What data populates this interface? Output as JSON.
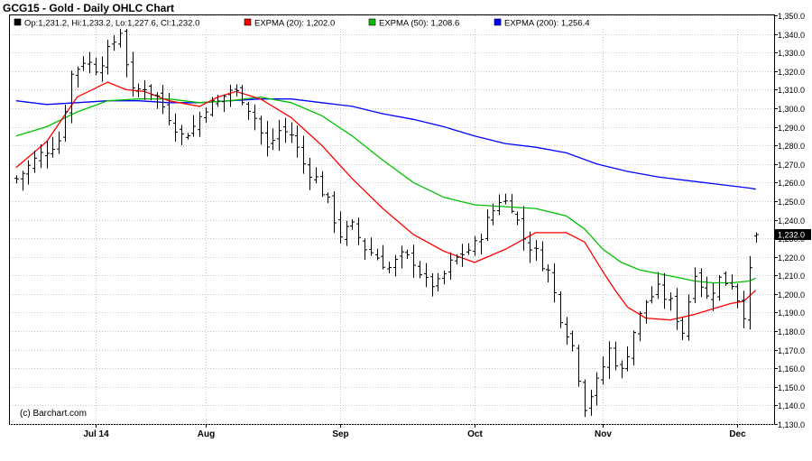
{
  "chart_data": {
    "type": "ohlc",
    "title": "GCG15 - Gold - Daily OHLC Chart",
    "legend": [
      {
        "name": "Op:1,231.2, Hi:1,233.2, Lo:1,227.6, Cl:1,232.0",
        "color": "#000000"
      },
      {
        "name": "EXPMA (20): 1,202.0",
        "color": "#ff0000"
      },
      {
        "name": "EXPMA (50): 1,208.6",
        "color": "#00c000"
      },
      {
        "name": "EXPMA (200): 1,256.4",
        "color": "#0000ff"
      }
    ],
    "legend_position": "top",
    "watermark": "(c) Barchart.com",
    "last_price_label": "1,232.0",
    "x_tick_labels": [
      "Jul 14",
      "Aug",
      "Sep",
      "Oct",
      "Nov",
      "Dec"
    ],
    "x_tick_days": [
      13,
      31,
      53,
      75,
      96,
      118
    ],
    "y_range": [
      1130,
      1350
    ],
    "y_ticks": [
      1130,
      1140,
      1150,
      1160,
      1170,
      1180,
      1190,
      1200,
      1210,
      1220,
      1230,
      1240,
      1250,
      1260,
      1270,
      1280,
      1290,
      1300,
      1310,
      1320,
      1330,
      1340,
      1350
    ],
    "y_tick_labels": [
      "1,130.0",
      "1,140.0",
      "1,150.0",
      "1,160.0",
      "1,170.0",
      "1,180.0",
      "1,190.0",
      "1,200.0",
      "1,210.0",
      "1,220.0",
      "1,230.0",
      "1,240.0",
      "1,250.0",
      "1,260.0",
      "1,270.0",
      "1,280.0",
      "1,290.0",
      "1,300.0",
      "1,310.0",
      "1,320.0",
      "1,330.0",
      "1,340.0",
      "1,350.0"
    ],
    "grid": true,
    "close_path_days": [
      0,
      3,
      5,
      7,
      9,
      11,
      13,
      15,
      17,
      19,
      21,
      23,
      25,
      27,
      29,
      31,
      33,
      35,
      37,
      39,
      41,
      43,
      45,
      47,
      49,
      51,
      53,
      55,
      57,
      59,
      61,
      63,
      65,
      67,
      69,
      71,
      73,
      75,
      77,
      79,
      81,
      83,
      85,
      87,
      89,
      91,
      93,
      95,
      97,
      99,
      101,
      103,
      105,
      107,
      109,
      111,
      113,
      115,
      117,
      119,
      121
    ],
    "close_path_values": [
      1262,
      1272,
      1278,
      1283,
      1318,
      1326,
      1322,
      1330,
      1342,
      1308,
      1312,
      1306,
      1296,
      1285,
      1290,
      1301,
      1303,
      1310,
      1306,
      1295,
      1278,
      1288,
      1286,
      1270,
      1262,
      1249,
      1232,
      1236,
      1225,
      1220,
      1214,
      1220,
      1218,
      1206,
      1205,
      1216,
      1222,
      1226,
      1239,
      1251,
      1248,
      1230,
      1222,
      1212,
      1188,
      1172,
      1140,
      1152,
      1170,
      1158,
      1180,
      1196,
      1202,
      1195,
      1180,
      1213,
      1198,
      1208,
      1206,
      1190,
      1232
    ],
    "ema20_days": [
      0,
      5,
      10,
      15,
      18,
      21,
      25,
      30,
      33,
      36,
      40,
      45,
      50,
      55,
      60,
      65,
      70,
      75,
      80,
      85,
      90,
      93,
      96,
      98,
      100,
      103,
      107,
      111,
      113,
      115,
      117,
      119,
      121
    ],
    "ema20_values": [
      1268,
      1282,
      1306,
      1314,
      1310,
      1309,
      1304,
      1301,
      1306,
      1309,
      1305,
      1295,
      1280,
      1262,
      1246,
      1232,
      1223,
      1217,
      1224,
      1233,
      1233,
      1228,
      1212,
      1202,
      1193,
      1187,
      1186,
      1189,
      1191,
      1193,
      1195,
      1196,
      1202
    ],
    "ema50_days": [
      0,
      5,
      10,
      15,
      20,
      25,
      30,
      35,
      40,
      45,
      50,
      55,
      60,
      65,
      70,
      75,
      80,
      85,
      90,
      93,
      96,
      99,
      102,
      105,
      108,
      111,
      114,
      117,
      120,
      121
    ],
    "ema50_values": [
      1285,
      1290,
      1298,
      1304,
      1305,
      1305,
      1303,
      1304,
      1306,
      1303,
      1296,
      1285,
      1272,
      1260,
      1252,
      1248,
      1247,
      1246,
      1242,
      1235,
      1224,
      1217,
      1213,
      1211,
      1209,
      1207,
      1206,
      1206,
      1207,
      1208.6
    ],
    "ema200_days": [
      0,
      5,
      10,
      15,
      20,
      25,
      30,
      35,
      40,
      45,
      50,
      55,
      60,
      65,
      70,
      75,
      80,
      85,
      90,
      95,
      100,
      105,
      110,
      115,
      120,
      121
    ],
    "ema200_values": [
      1304,
      1302,
      1303,
      1304,
      1304,
      1303,
      1303,
      1304,
      1305,
      1305,
      1303,
      1301,
      1297,
      1294,
      1290,
      1285,
      1281,
      1279,
      1276,
      1270,
      1266,
      1263,
      1261,
      1259,
      1257,
      1256.4
    ]
  }
}
